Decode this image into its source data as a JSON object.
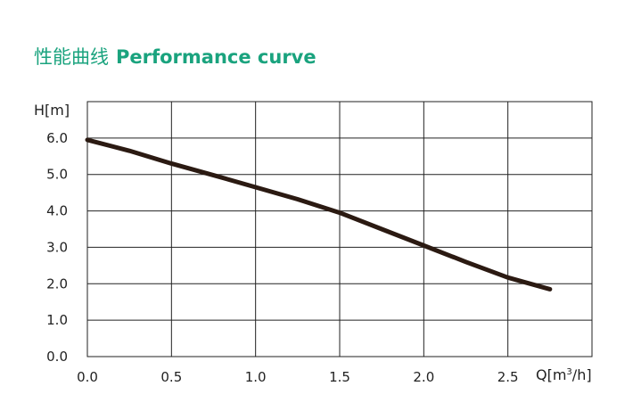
{
  "title": {
    "zh": "性能曲线",
    "en": "Performance curve",
    "color": "#1aa37e"
  },
  "chart_data": {
    "type": "line",
    "ylabel": "H[m]",
    "xlabel_prefix": "Q[m",
    "xlabel_sup": "3",
    "xlabel_suffix": "/h]",
    "xlim": [
      0,
      3.0
    ],
    "ylim": [
      0,
      7.0
    ],
    "xticks": [
      0,
      0.5,
      1.0,
      1.5,
      2.0,
      2.5
    ],
    "xtick_labels": [
      "0.0",
      "0.5",
      "1.0",
      "1.5",
      "2.0",
      "2.5"
    ],
    "yticks": [
      0,
      1,
      2,
      3,
      4,
      5,
      6
    ],
    "ytick_labels": [
      "0.0",
      "1.0",
      "2.0",
      "3.0",
      "4.0",
      "5.0",
      "6.0"
    ],
    "grid": true,
    "series": [
      {
        "color": "#2b1a12",
        "x": [
          0,
          0.25,
          0.5,
          0.75,
          1.0,
          1.25,
          1.5,
          1.75,
          2.0,
          2.25,
          2.5,
          2.75
        ],
        "y": [
          5.95,
          5.65,
          5.3,
          4.98,
          4.65,
          4.32,
          3.95,
          3.5,
          3.05,
          2.6,
          2.17,
          1.85
        ]
      }
    ]
  }
}
